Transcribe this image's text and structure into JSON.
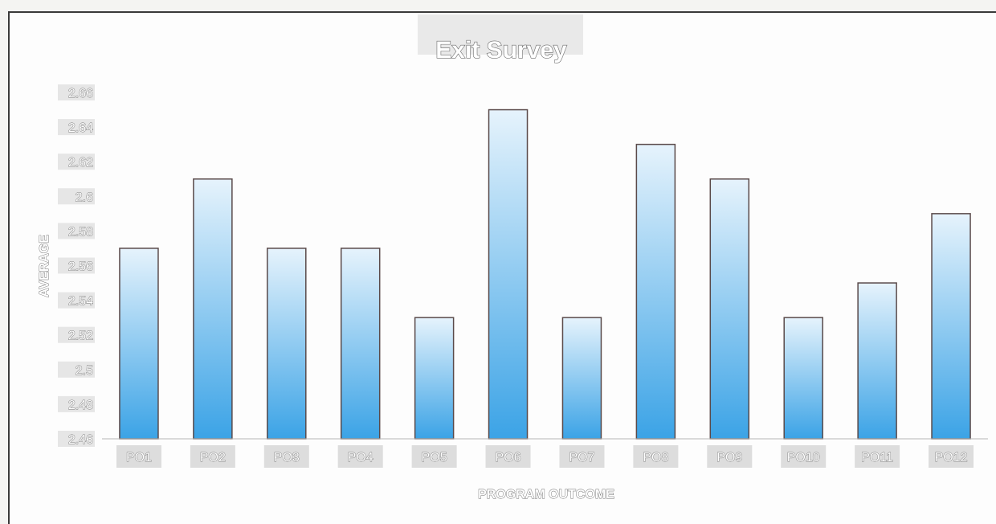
{
  "chart_data": {
    "type": "bar",
    "title": "Exit Survey",
    "xlabel": "PROGRAM OUTCOME",
    "ylabel": "AVERAGE",
    "categories": [
      "PO1",
      "PO2",
      "PO3",
      "PO4",
      "PO5",
      "PO6",
      "PO7",
      "PO8",
      "PO9",
      "PO10",
      "PO11",
      "PO12"
    ],
    "values": [
      2.57,
      2.61,
      2.57,
      2.57,
      2.53,
      2.65,
      2.53,
      2.63,
      2.61,
      2.53,
      2.55,
      2.59
    ],
    "ylim": [
      2.46,
      2.66
    ],
    "yticks": [
      "2.46",
      "2.48",
      "2.5",
      "2.52",
      "2.54",
      "2.56",
      "2.58",
      "2.6",
      "2.62",
      "2.64",
      "2.66"
    ],
    "grid": false,
    "legend": "none",
    "colors": {
      "bar_top": "#e6f3fc",
      "bar_bottom": "#3ba3e6",
      "bar_edge": "#5a4a4a"
    }
  }
}
